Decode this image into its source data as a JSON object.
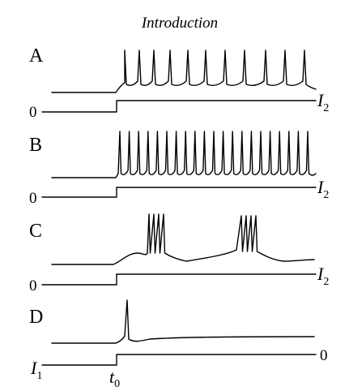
{
  "title": "Introduction",
  "panels": [
    {
      "letter": "A",
      "level_label_right": "I",
      "level_label_right_sub": "2",
      "level_label_left": "0"
    },
    {
      "letter": "B",
      "level_label_right": "I",
      "level_label_right_sub": "2",
      "level_label_left": "0"
    },
    {
      "letter": "C",
      "level_label_right": "I",
      "level_label_right_sub": "2",
      "level_label_left": "0"
    },
    {
      "letter": "D",
      "level_label_right": "0",
      "level_label_left": "I",
      "level_label_left_sub": "1"
    }
  ],
  "onset_label": "t",
  "onset_label_sub": "0"
}
